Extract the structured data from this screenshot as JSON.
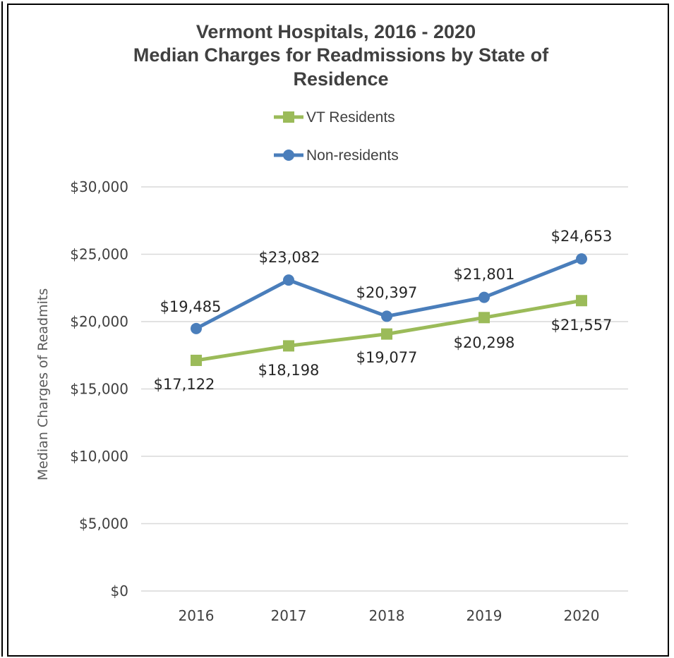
{
  "chart_data": {
    "type": "line",
    "title_lines": [
      "Vermont Hospitals, 2016 - 2020",
      "Median Charges for Readmissions by State of",
      "Residence"
    ],
    "ylabel": "Median Charges of Readmits",
    "xlabel": "",
    "categories": [
      "2016",
      "2017",
      "2018",
      "2019",
      "2020"
    ],
    "ylim": [
      0,
      30000
    ],
    "yticks": [
      0,
      5000,
      10000,
      15000,
      20000,
      25000,
      30000
    ],
    "ytick_labels": [
      "$0",
      "$5,000",
      "$10,000",
      "$15,000",
      "$20,000",
      "$25,000",
      "$30,000"
    ],
    "grid": true,
    "legend_position": "top",
    "series": [
      {
        "name": "VT Residents",
        "color": "#9bbb59",
        "marker": "square",
        "values": [
          17122,
          18198,
          19077,
          20298,
          21557
        ],
        "labels": [
          "$17,122",
          "$18,198",
          "$19,077",
          "$20,298",
          "$21,557"
        ]
      },
      {
        "name": "Non-residents",
        "color": "#4a7ebb",
        "marker": "circle",
        "values": [
          19485,
          23082,
          20397,
          21801,
          24653
        ],
        "labels": [
          "$19,485",
          "$23,082",
          "$20,397",
          "$21,801",
          "$24,653"
        ]
      }
    ]
  }
}
